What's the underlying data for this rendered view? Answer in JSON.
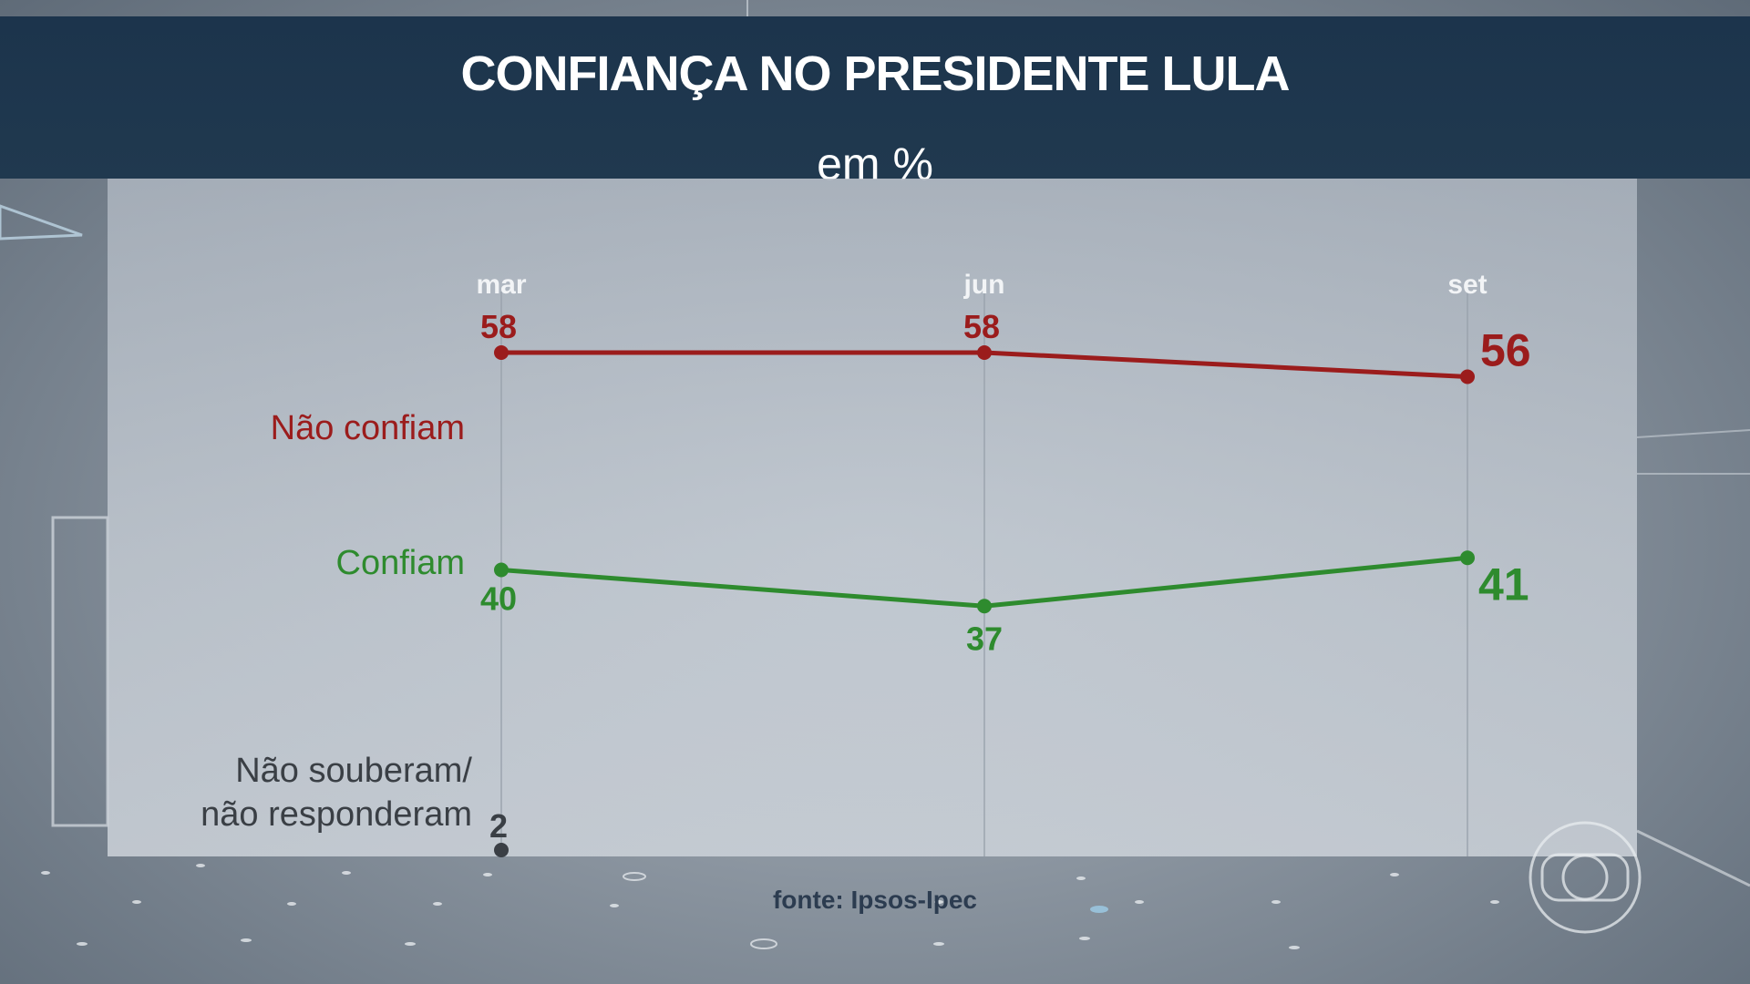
{
  "header": {
    "title": "CONFIANÇA NO PRESIDENTE LULA",
    "subtitle": "em %"
  },
  "footer": {
    "source": "fonte: Ipsos-Ipec"
  },
  "colors": {
    "nao_confiam": "#9b1c1c",
    "confiam": "#2e8b2e",
    "nao_souberam": "#3a3f45"
  },
  "chart_data": {
    "type": "line",
    "title": "CONFIANÇA NO PRESIDENTE LULA",
    "subtitle": "em %",
    "categories": [
      "mar",
      "jun",
      "set"
    ],
    "series": [
      {
        "name": "Não confiam",
        "values": [
          58,
          58,
          56
        ]
      },
      {
        "name": "Confiam",
        "values": [
          40,
          37,
          41
        ]
      },
      {
        "name": "Não souberam/\nnão responderam",
        "values": [
          2,
          null,
          null
        ]
      }
    ],
    "source": "fonte: Ipsos-Ipec",
    "grid": "vertical"
  }
}
